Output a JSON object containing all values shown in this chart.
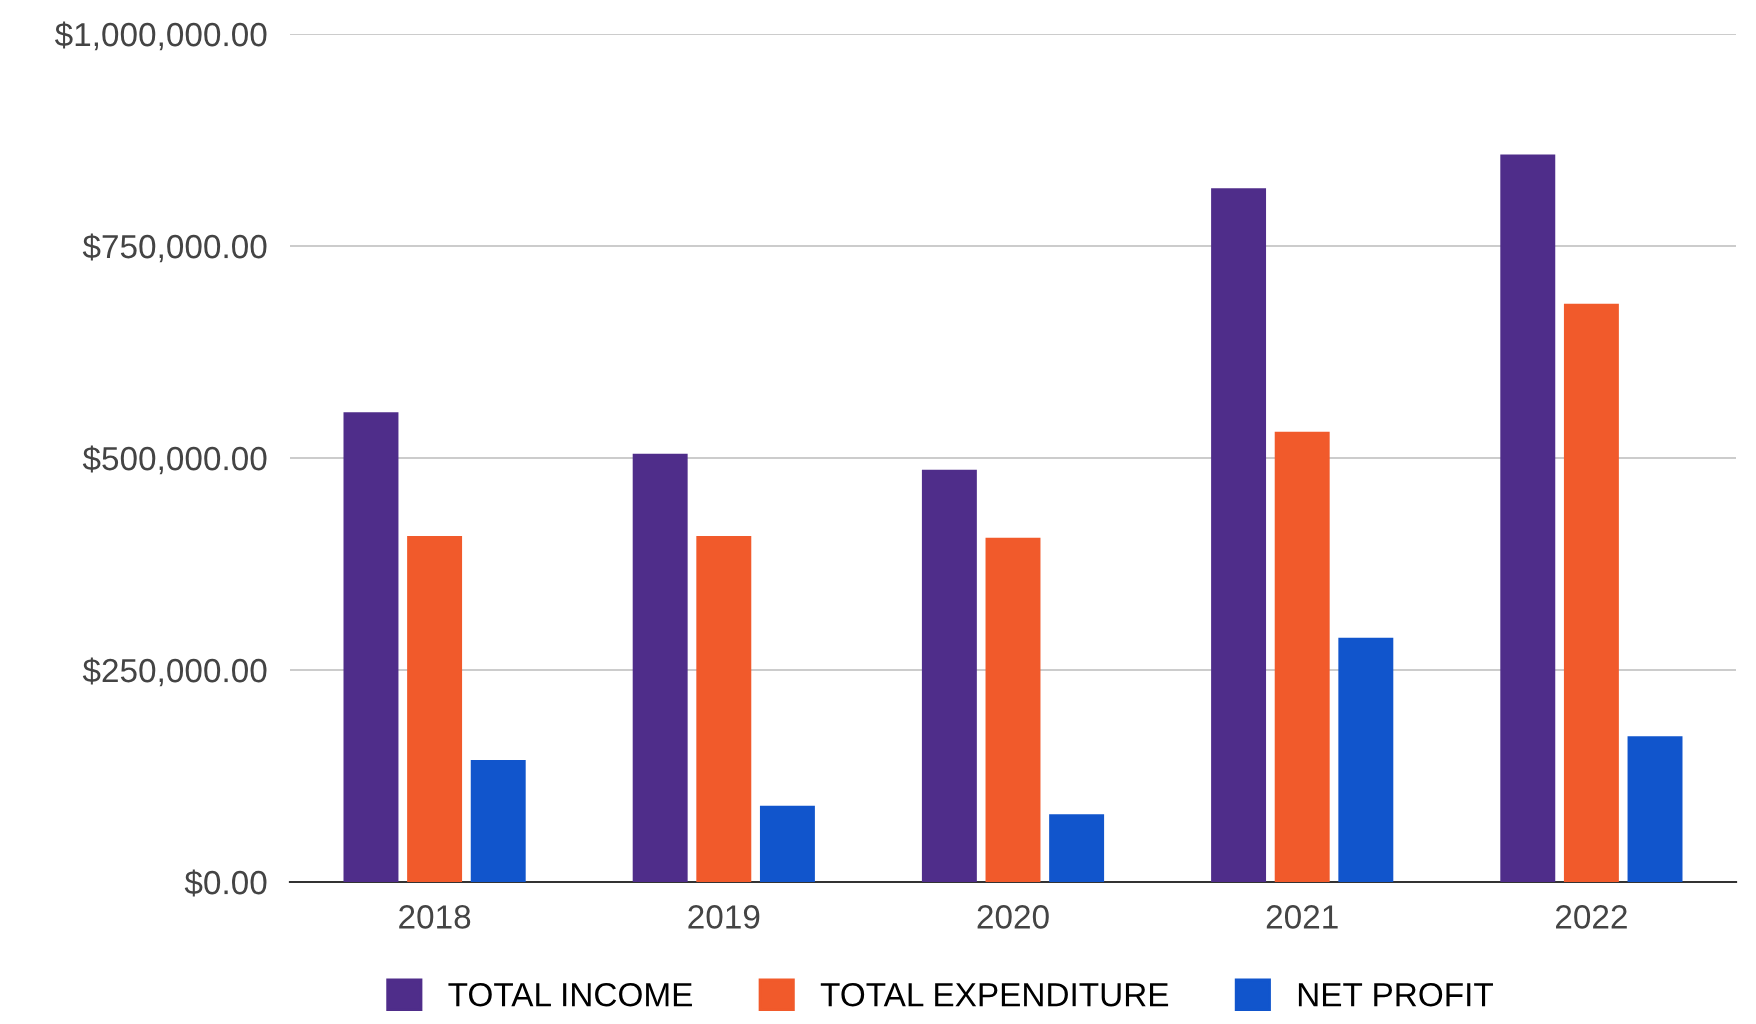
{
  "chart_data": {
    "type": "bar",
    "categories": [
      "2018",
      "2019",
      "2020",
      "2021",
      "2022"
    ],
    "series": [
      {
        "name": "TOTAL INCOME",
        "color": "#4f2d8a",
        "values": [
          554000,
          505000,
          486000,
          818000,
          858000
        ]
      },
      {
        "name": "TOTAL EXPENDITURE",
        "color": "#f15a2b",
        "values": [
          408000,
          408000,
          406000,
          531000,
          682000
        ]
      },
      {
        "name": "NET PROFIT",
        "color": "#1155cc",
        "values": [
          144000,
          90000,
          80000,
          288000,
          172000
        ]
      }
    ],
    "ylim": [
      0,
      1000000
    ],
    "yticks": [
      {
        "value": 0,
        "label": "$0.00"
      },
      {
        "value": 250000,
        "label": "$250,000.00"
      },
      {
        "value": 500000,
        "label": "$500,000.00"
      },
      {
        "value": 750000,
        "label": "$750,000.00"
      },
      {
        "value": 1000000,
        "label": "$1,000,000.00"
      }
    ],
    "grid": "y",
    "legend": "bottom"
  }
}
